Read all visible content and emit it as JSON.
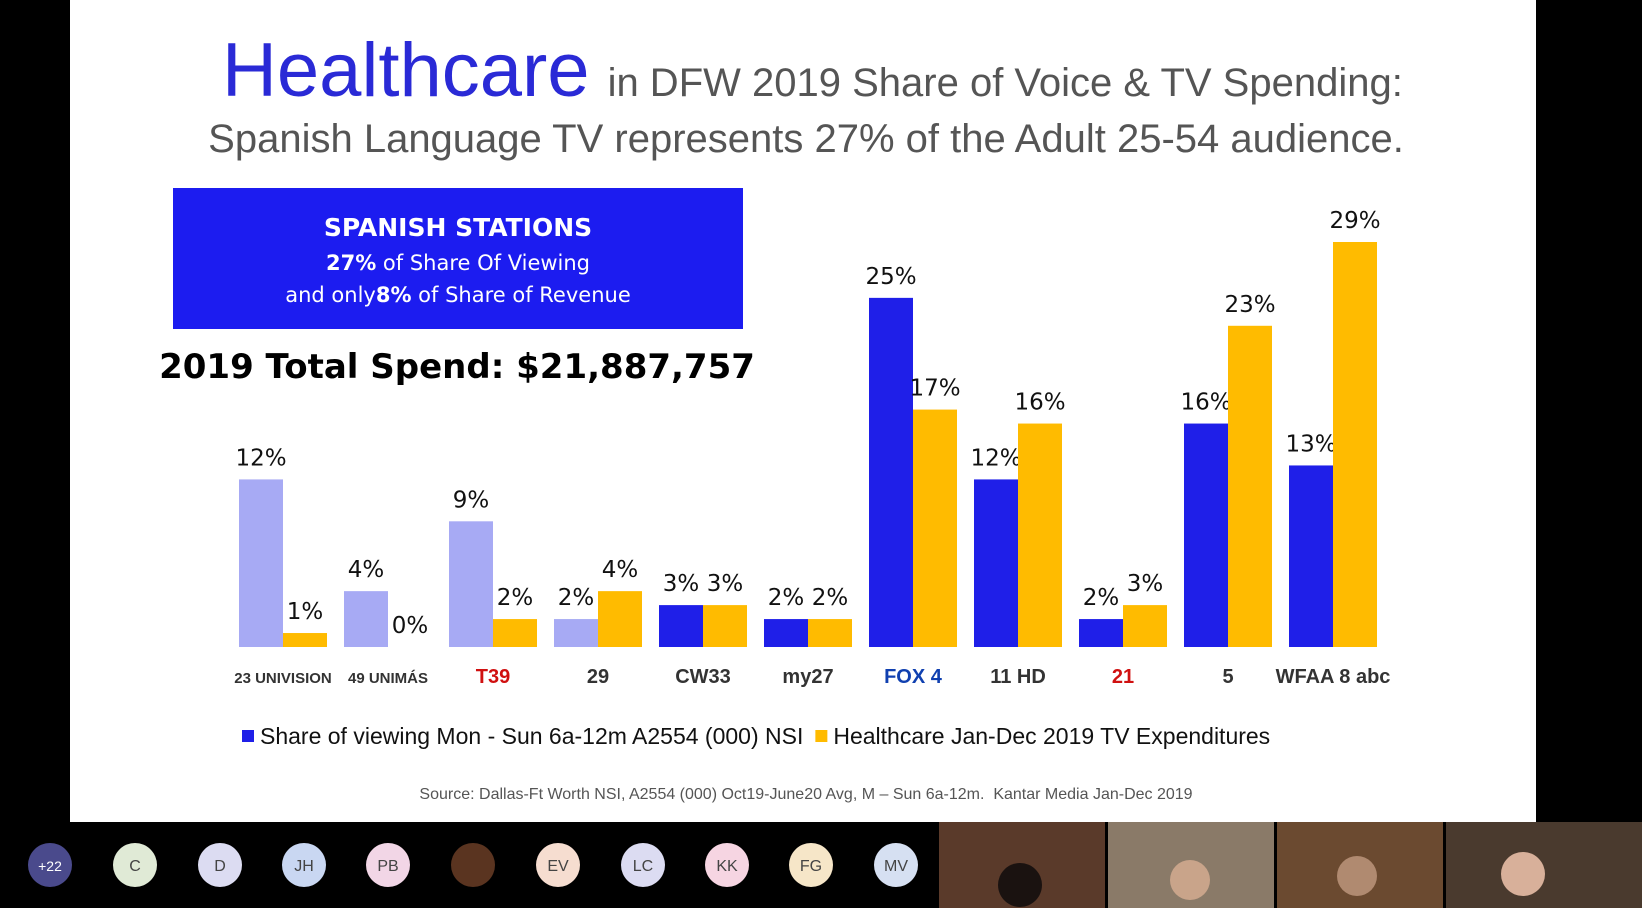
{
  "chart_data": {
    "type": "bar",
    "title": "Healthcare",
    "title_rest": "in DFW 2019 Share of Voice & TV Spending:",
    "subtitle": "Spanish Language TV represents 27% of the Adult 25-54 audience.",
    "categories": [
      "23 UNIVISION",
      "49 UNIMÁS",
      "T39",
      "29",
      "CW33",
      "my27",
      "FOX 4",
      "11 HD",
      "21",
      "5",
      "WFAA 8 abc"
    ],
    "series": [
      {
        "name": "Share of viewing Mon - Sun 6a-12m A2554 (000) NSI",
        "color": "#1f1fe8",
        "point_colors": [
          "#a7aaf4",
          "#a7aaf4",
          "#a7aaf4",
          "#a7aaf4",
          "#1f1fe8",
          "#1f1fe8",
          "#1f1fe8",
          "#1f1fe8",
          "#1f1fe8",
          "#1f1fe8",
          "#1f1fe8"
        ],
        "values": [
          12,
          4,
          9,
          2,
          3,
          2,
          25,
          12,
          2,
          16,
          13
        ],
        "value_labels": [
          "12%",
          "4%",
          "9%",
          "2%",
          "3%",
          "2%",
          "25%",
          "12%",
          "2%",
          "16%",
          "13%"
        ]
      },
      {
        "name": "Healthcare Jan-Dec 2019 TV Expenditures",
        "color": "#ffbb00",
        "values": [
          1,
          0,
          2,
          4,
          3,
          2,
          17,
          16,
          3,
          23,
          29
        ],
        "value_labels": [
          "1%",
          "0%",
          "2%",
          "4%",
          "3%",
          "2%",
          "17%",
          "16%",
          "3%",
          "23%",
          "29%"
        ]
      }
    ],
    "legend": "bottom",
    "annotations": {
      "box_title": "SPANISH STATIONS",
      "box_line1": [
        {
          "text": "27%",
          "bold": true
        },
        {
          "text": " of Share Of Viewing",
          "bold": false
        }
      ],
      "box_line2": [
        {
          "text": "and only",
          "bold": false
        },
        {
          "text": "8%",
          "bold": true
        },
        {
          "text": " of Share of Revenue",
          "bold": false
        }
      ],
      "total_spend": "2019 Total Spend: $21,887,757",
      "source": "Source: Dallas-Ft Worth NSI, A2554 (000) Oct19-June20 Avg, M – Sun 6a-12m.  Kantar Media Jan-Dec 2019"
    }
  },
  "participants": [
    "+22",
    "C",
    "D",
    "JH",
    "PB",
    "EV",
    "LC",
    "KK",
    "FG",
    "MV"
  ]
}
